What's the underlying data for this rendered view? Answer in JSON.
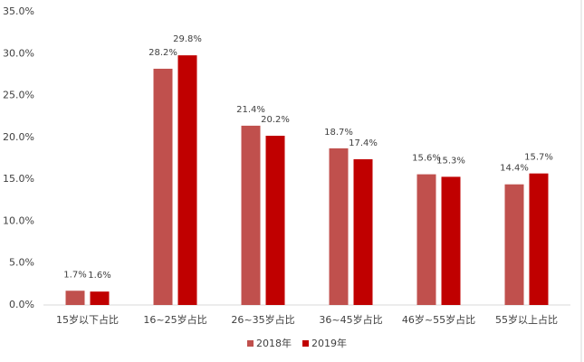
{
  "chart_data": {
    "type": "bar",
    "categories": [
      "15岁以下占比",
      "16~25岁占比",
      "26~35岁占比",
      "36~45岁占比",
      "46岁~55岁占比",
      "55岁以上占比"
    ],
    "series": [
      {
        "name": "2018年",
        "color": "#c0504d",
        "values": [
          1.7,
          28.2,
          21.4,
          18.7,
          15.6,
          14.4
        ],
        "value_labels": [
          "1.7%",
          "28.2%",
          "21.4%",
          "18.7%",
          "15.6%",
          "14.4%"
        ]
      },
      {
        "name": "2019年",
        "color": "#c00000",
        "values": [
          1.6,
          29.8,
          20.2,
          17.4,
          15.3,
          15.7
        ],
        "value_labels": [
          "1.6%",
          "29.8%",
          "20.2%",
          "17.4%",
          "15.3%",
          "15.7%"
        ]
      }
    ],
    "ylim": [
      0,
      35
    ],
    "yticks": [
      {
        "value": 0,
        "label": "0.0%"
      },
      {
        "value": 5,
        "label": "5.0%"
      },
      {
        "value": 10,
        "label": "10.0%"
      },
      {
        "value": 15,
        "label": "15.0%"
      },
      {
        "value": 20,
        "label": "20.0%"
      },
      {
        "value": 25,
        "label": "25.0%"
      },
      {
        "value": 30,
        "label": "30.0%"
      },
      {
        "value": 35,
        "label": "35.0%"
      }
    ],
    "grid": false,
    "legend": "bottom"
  }
}
